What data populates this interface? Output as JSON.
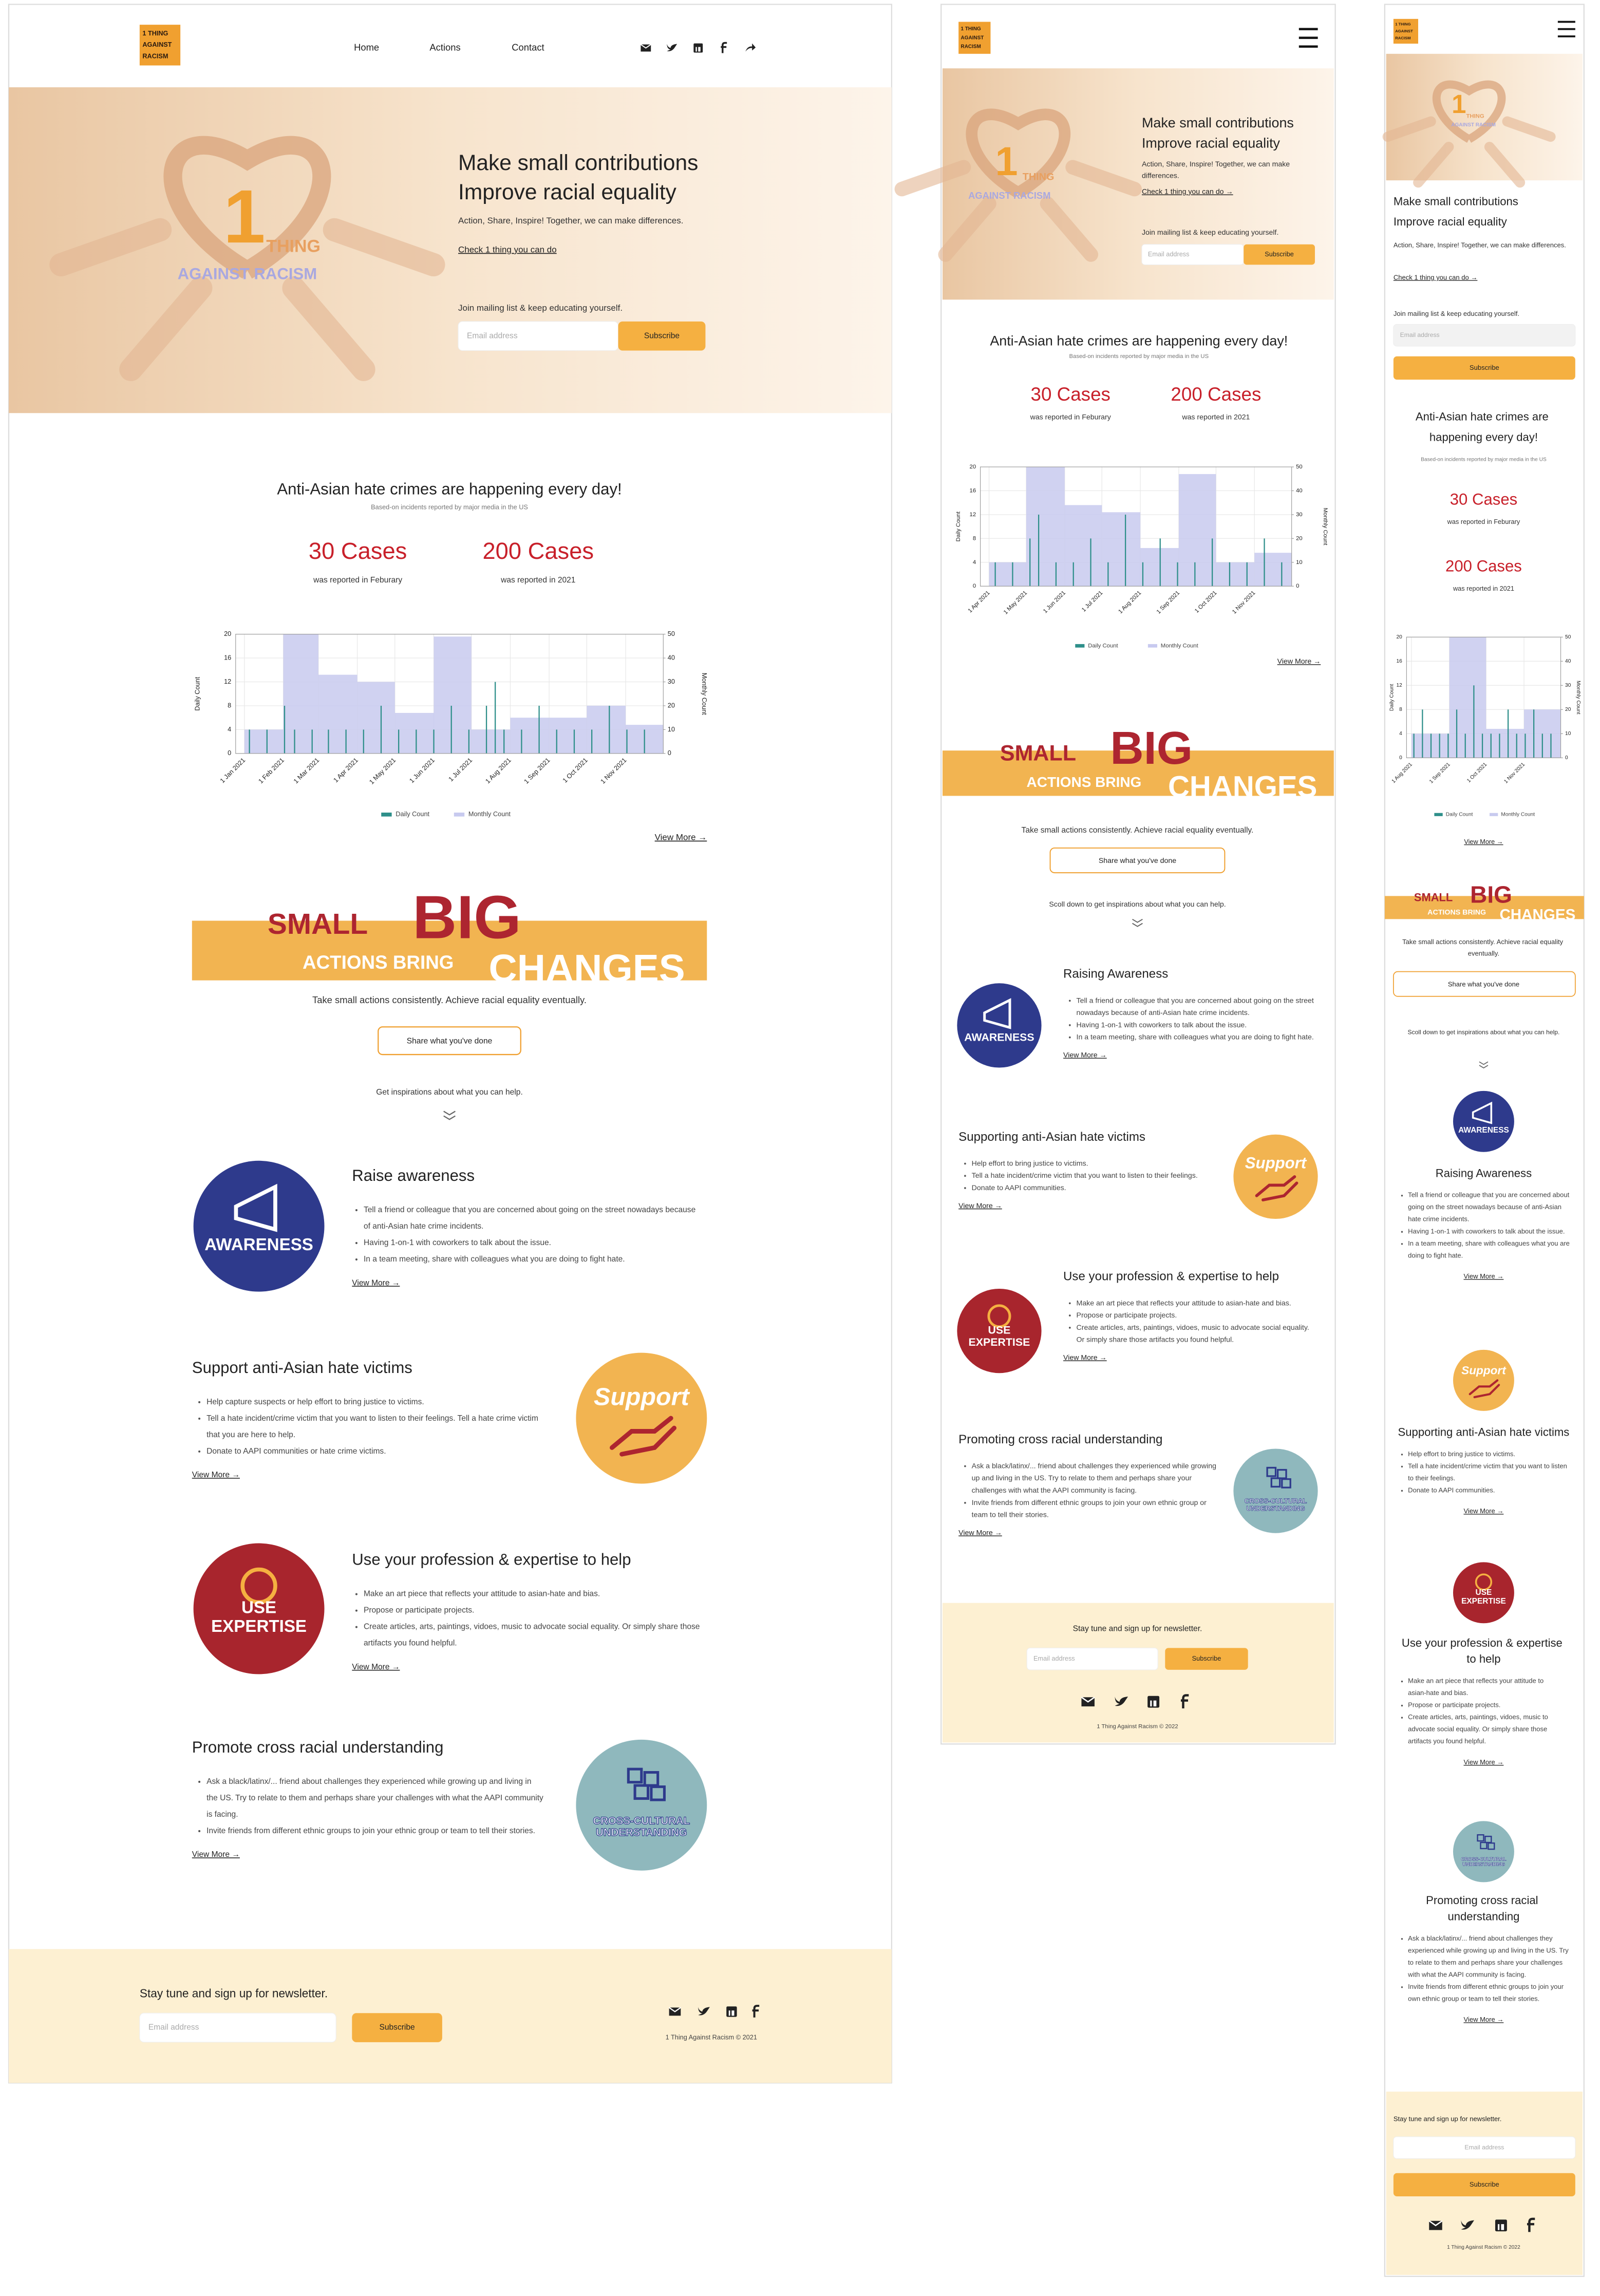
{
  "brand": {
    "logo_lines": [
      "1 THING",
      "AGAINST",
      "RACISM"
    ]
  },
  "nav": [
    "Home",
    "Actions",
    "Contact"
  ],
  "hero": {
    "art": {
      "number": "1",
      "word": "THING",
      "tagline": "AGAINST RACISM"
    },
    "title_lines": [
      "Make small contributions",
      "Improve racial equality"
    ],
    "subtitle": "Action, Share, Inspire! Together, we can make differences.",
    "link": {
      "desktop": "Check 1 thing you can do",
      "responsive": "Check 1 thing you can do →"
    },
    "mailing": "Join mailing list & keep educating yourself.",
    "email_placeholder": "Email address",
    "subscribe": "Subscribe"
  },
  "stats": {
    "title": "Anti-Asian hate crimes are happening every day!",
    "source": "Based-on incidents reported by major media in the US",
    "items": [
      {
        "value": "30 Cases",
        "note": "was reported in Feburary"
      },
      {
        "value": "200 Cases",
        "note": "was reported in 2021"
      }
    ]
  },
  "view_more": "View More →",
  "banner": {
    "small": "SMALL",
    "big": "BIG",
    "actions_bring": "ACTIONS BRING",
    "changes": "CHANGES",
    "tagline": "Take small actions consistently. Achieve racial equality eventually.",
    "share_button": "Share what you've done"
  },
  "inspire": {
    "desktop": "Get inspirations about what you can help.",
    "responsive": "Scoll down to get inspirations about what you can help."
  },
  "actions": {
    "desktop": [
      {
        "title": "Raise awareness",
        "badge": [
          "AWARENESS"
        ],
        "bullets": [
          "Tell a friend or colleague that you are concerned about going on the street nowadays because of anti-Asian hate crime incidents.",
          "Having 1-on-1 with coworkers to talk about the issue.",
          "In a team meeting, share with colleagues what you are doing to fight hate."
        ]
      },
      {
        "title": "Support anti-Asian hate victims",
        "badge": [
          "Support"
        ],
        "bullets": [
          "Help capture suspects or help effort to bring justice to victims.",
          "Tell a hate incident/crime victim that you want to listen to their feelings. Tell a hate crime victim that you are here to help.",
          "Donate to AAPI communities or hate crime victims."
        ]
      },
      {
        "title": "Use your profession & expertise to help",
        "badge": [
          "USE",
          "EXPERTISE"
        ],
        "bullets": [
          "Make an art piece that reflects your attitude to asian-hate and bias.",
          "Propose or participate projects.",
          "Create articles, arts, paintings, vidoes, music to advocate social equality. Or simply share those artifacts you found helpful."
        ]
      },
      {
        "title": "Promote cross racial understanding",
        "badge": [
          "CROSS-CULTURAL",
          "UNDERSTANDING"
        ],
        "bullets": [
          "Ask a black/latinx/... friend about challenges they experienced while growing up and living in the US. Try to relate to them and perhaps share your challenges with what the AAPI community is facing.",
          "Invite friends from different ethnic groups to join your ethnic group or team to tell their stories."
        ]
      }
    ],
    "responsive": [
      {
        "title": "Raising Awareness",
        "badge": [
          "AWARENESS"
        ],
        "bullets": [
          "Tell a friend or colleague that you are concerned about going on the street nowadays because of anti-Asian hate crime incidents.",
          "Having 1-on-1 with coworkers to talk about the issue.",
          "In a team meeting, share with colleagues what you are doing to fight hate."
        ]
      },
      {
        "title": "Supporting anti-Asian hate victims",
        "badge": [
          "Support"
        ],
        "bullets": [
          "Help effort to bring justice to victims.",
          "Tell a hate incident/crime victim that you want to listen to their feelings.",
          "Donate to AAPI communities."
        ]
      },
      {
        "title": "Use your profession & expertise to help",
        "badge": [
          "USE",
          "EXPERTISE"
        ],
        "bullets": [
          "Make an art piece that reflects your attitude to asian-hate and bias.",
          "Propose or participate projects.",
          "Create articles, arts, paintings, vidoes, music to advocate social equality. Or simply share those artifacts you found helpful."
        ]
      },
      {
        "title": "Promoting cross racial understanding",
        "badge": [
          "CROSS-CULTURAL",
          "UNDERSTANDING"
        ],
        "bullets": [
          "Ask a black/latinx/... friend about challenges they experienced while growing up and living in the US. Try to relate to them and perhaps share your challenges with what the AAPI community is facing.",
          "Invite friends from different ethnic groups to join your own ethnic group or team to tell their stories."
        ]
      }
    ]
  },
  "footer": {
    "newsletter": "Stay tune and sign up for newsletter.",
    "copyright": {
      "desktop": "1 Thing Against Racism © 2021",
      "responsive": "1 Thing Against Racism © 2022"
    }
  },
  "chart_data": [
    {
      "type": "bar",
      "ylabel": "Daily Count",
      "y2label": "Monthly Count",
      "grid": true,
      "xlim": [
        "2020-12-25",
        "2021-12-01"
      ],
      "xticks": [
        {
          "value": "2021-01-01",
          "label": "1 Jan 2021"
        },
        {
          "value": "2021-02-01",
          "label": "1 Feb 2021"
        },
        {
          "value": "2021-03-01",
          "label": "1 Mar 2021"
        },
        {
          "value": "2021-04-01",
          "label": "1 Apr 2021"
        },
        {
          "value": "2021-05-01",
          "label": "1 May 2021"
        },
        {
          "value": "2021-06-01",
          "label": "1 Jun 2021"
        },
        {
          "value": "2021-07-01",
          "label": "1 Jul 2021"
        },
        {
          "value": "2021-08-01",
          "label": "1 Aug 2021"
        },
        {
          "value": "2021-09-01",
          "label": "1 Sep 2021"
        },
        {
          "value": "2021-10-01",
          "label": "1 Oct 2021"
        },
        {
          "value": "2021-11-01",
          "label": "1 Nov 2021"
        }
      ],
      "ylim": [
        0,
        20
      ],
      "yticks": [
        0,
        4,
        8,
        12,
        16,
        20
      ],
      "y2lim": [
        0,
        50
      ],
      "y2ticks": [
        0,
        10,
        20,
        30,
        40,
        50
      ],
      "series": [
        {
          "name": "Daily Count",
          "color": "#2e8f8a",
          "x": [
            "2021-01-05",
            "2021-01-19",
            "2021-02-02",
            "2021-02-10",
            "2021-02-24",
            "2021-03-09",
            "2021-03-23",
            "2021-04-06",
            "2021-04-20",
            "2021-05-04",
            "2021-05-18",
            "2021-06-01",
            "2021-06-15",
            "2021-06-29",
            "2021-07-13",
            "2021-07-20",
            "2021-07-27",
            "2021-08-10",
            "2021-08-24",
            "2021-09-07",
            "2021-09-21",
            "2021-10-05",
            "2021-10-19",
            "2021-11-02",
            "2021-11-16"
          ],
          "values": [
            4,
            4,
            8,
            4,
            4,
            4,
            4,
            4,
            8,
            4,
            4,
            4,
            8,
            4,
            8,
            12,
            4,
            4,
            8,
            4,
            4,
            4,
            8,
            4,
            4
          ]
        },
        {
          "name": "Monthly Count",
          "color": "#c8caef",
          "axis": "y2",
          "bins": [
            "2021-01-01",
            "2021-02-01",
            "2021-03-01",
            "2021-04-01",
            "2021-05-01",
            "2021-06-01",
            "2021-07-01",
            "2021-08-01",
            "2021-09-01",
            "2021-10-01",
            "2021-11-01",
            "2021-12-01"
          ],
          "values": [
            10,
            50,
            33,
            30,
            17,
            49,
            10,
            15,
            15,
            20,
            12
          ]
        }
      ]
    },
    {
      "type": "bar",
      "ylabel": "Daily Count",
      "y2label": "Monthly Count",
      "grid": true,
      "xlim": [
        "2021-03-25",
        "2021-12-01"
      ],
      "xticks": [
        {
          "value": "2021-04-01",
          "label": "1 Apr 2021"
        },
        {
          "value": "2021-05-01",
          "label": "1 May 2021"
        },
        {
          "value": "2021-06-01",
          "label": "1 Jun 2021"
        },
        {
          "value": "2021-07-01",
          "label": "1 Jul 2021"
        },
        {
          "value": "2021-08-01",
          "label": "1 Aug 2021"
        },
        {
          "value": "2021-09-01",
          "label": "1 Sep 2021"
        },
        {
          "value": "2021-10-01",
          "label": "1 Oct 2021"
        },
        {
          "value": "2021-11-01",
          "label": "1 Nov 2021"
        }
      ],
      "ylim": [
        0,
        20
      ],
      "yticks": [
        0,
        4,
        8,
        12,
        16,
        20
      ],
      "y2lim": [
        0,
        50
      ],
      "y2ticks": [
        0,
        10,
        20,
        30,
        40,
        50
      ],
      "series": [
        {
          "name": "Daily Count",
          "color": "#2e8f8a",
          "x": [
            "2021-04-06",
            "2021-04-20",
            "2021-05-04",
            "2021-05-11",
            "2021-05-25",
            "2021-06-08",
            "2021-06-22",
            "2021-07-06",
            "2021-07-20",
            "2021-08-03",
            "2021-08-17",
            "2021-08-31",
            "2021-09-14",
            "2021-09-28",
            "2021-10-12",
            "2021-10-26",
            "2021-11-09",
            "2021-11-23"
          ],
          "values": [
            4,
            4,
            8,
            12,
            4,
            4,
            8,
            4,
            12,
            4,
            8,
            4,
            4,
            8,
            4,
            4,
            8,
            4
          ]
        },
        {
          "name": "Monthly Count",
          "color": "#c8caef",
          "axis": "y2",
          "bins": [
            "2021-04-01",
            "2021-05-01",
            "2021-06-01",
            "2021-07-01",
            "2021-08-01",
            "2021-09-01",
            "2021-10-01",
            "2021-11-01",
            "2021-12-01"
          ],
          "values": [
            10,
            50,
            34,
            31,
            16,
            47,
            10,
            14
          ]
        }
      ]
    },
    {
      "type": "bar",
      "ylabel": "Daily Count",
      "y2label": "Monthly Count",
      "grid": true,
      "xlim": [
        "2021-07-28",
        "2021-12-01"
      ],
      "xticks": [
        {
          "value": "2021-08-01",
          "label": "1 Aug 2021"
        },
        {
          "value": "2021-09-01",
          "label": "1 Sep 2021"
        },
        {
          "value": "2021-10-01",
          "label": "1 Oct 2021"
        },
        {
          "value": "2021-11-01",
          "label": "1 Nov 2021"
        }
      ],
      "ylim": [
        0,
        20
      ],
      "yticks": [
        0,
        4,
        8,
        12,
        16,
        20
      ],
      "y2lim": [
        0,
        50
      ],
      "y2ticks": [
        0,
        10,
        20,
        30,
        40,
        50
      ],
      "series": [
        {
          "name": "Daily Count",
          "color": "#2e8f8a",
          "x": [
            "2021-08-03",
            "2021-08-10",
            "2021-08-17",
            "2021-08-24",
            "2021-08-31",
            "2021-09-07",
            "2021-09-14",
            "2021-09-21",
            "2021-09-28",
            "2021-10-05",
            "2021-10-12",
            "2021-10-19",
            "2021-10-26",
            "2021-11-02",
            "2021-11-09",
            "2021-11-16",
            "2021-11-23"
          ],
          "values": [
            4,
            8,
            4,
            4,
            4,
            8,
            4,
            12,
            4,
            4,
            4,
            8,
            4,
            4,
            8,
            4,
            4
          ]
        },
        {
          "name": "Monthly Count",
          "color": "#c8caef",
          "axis": "y2",
          "bins": [
            "2021-08-01",
            "2021-09-01",
            "2021-10-01",
            "2021-11-01",
            "2021-12-01"
          ],
          "values": [
            10,
            50,
            12,
            20
          ]
        }
      ]
    }
  ]
}
